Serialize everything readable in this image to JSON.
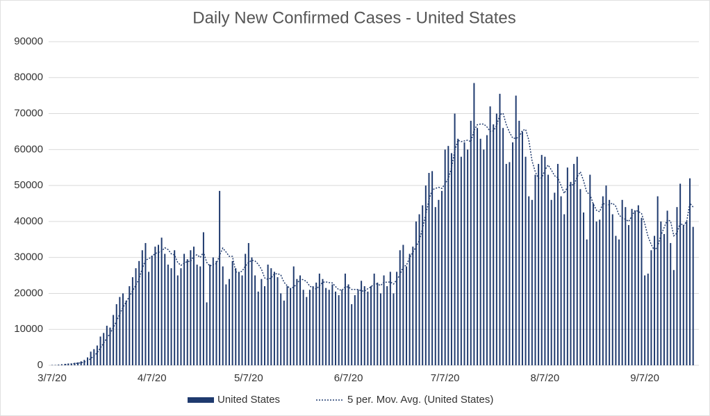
{
  "chart_data": {
    "type": "bar",
    "title": "Daily New Confirmed Cases - United States",
    "categories": [
      "3/7/20",
      null,
      null,
      null,
      null,
      null,
      null,
      null,
      null,
      null,
      null,
      null,
      null,
      null,
      null,
      null,
      null,
      null,
      null,
      null,
      null,
      null,
      null,
      null,
      null,
      null,
      null,
      null,
      null,
      null,
      null,
      "4/7/20",
      null,
      null,
      null,
      null,
      null,
      null,
      null,
      null,
      null,
      null,
      null,
      null,
      null,
      null,
      null,
      null,
      null,
      null,
      null,
      null,
      null,
      null,
      null,
      null,
      null,
      null,
      null,
      null,
      null,
      "5/7/20",
      null,
      null,
      null,
      null,
      null,
      null,
      null,
      null,
      null,
      null,
      null,
      null,
      null,
      null,
      null,
      null,
      null,
      null,
      null,
      null,
      null,
      null,
      null,
      null,
      null,
      null,
      null,
      null,
      null,
      null,
      "6/7/20",
      null,
      null,
      null,
      null,
      null,
      null,
      null,
      null,
      null,
      null,
      null,
      null,
      null,
      null,
      null,
      null,
      null,
      null,
      null,
      null,
      null,
      null,
      null,
      null,
      null,
      null,
      null,
      null,
      null,
      "7/7/20",
      null,
      null,
      null,
      null,
      null,
      null,
      null,
      null,
      null,
      null,
      null,
      null,
      null,
      null,
      null,
      null,
      null,
      null,
      null,
      null,
      null,
      null,
      null,
      null,
      null,
      null,
      null,
      null,
      null,
      null,
      "8/7/20",
      null,
      null,
      null,
      null,
      null,
      null,
      null,
      null,
      null,
      null,
      null,
      null,
      null,
      null,
      null,
      null,
      null,
      null,
      null,
      null,
      null,
      null,
      null,
      null,
      null,
      null,
      null,
      null,
      null,
      null,
      "9/7/20",
      null,
      null,
      null,
      null,
      null,
      null,
      null,
      null,
      null,
      null,
      null,
      null,
      null,
      null,
      null
    ],
    "series": [
      {
        "name": "United States",
        "color": "#1f3a6e",
        "values": [
          100,
          100,
          200,
          300,
          400,
          500,
          500,
          700,
          800,
          1100,
          1500,
          2200,
          3800,
          4500,
          5500,
          8000,
          9000,
          11000,
          10500,
          14000,
          17000,
          19000,
          20000,
          18000,
          22000,
          24500,
          27000,
          29000,
          32000,
          34000,
          26000,
          30500,
          33000,
          33500,
          35500,
          31000,
          28000,
          27000,
          32000,
          25000,
          27000,
          31000,
          29500,
          32000,
          33000,
          28000,
          27500,
          37000,
          17500,
          28000,
          30000,
          29000,
          48500,
          27500,
          22500,
          24000,
          29000,
          27000,
          26000,
          25000,
          31000,
          34000,
          30000,
          25000,
          20500,
          24000,
          22000,
          28000,
          27000,
          26000,
          24500,
          20000,
          18000,
          22000,
          21500,
          27500,
          24000,
          25000,
          21000,
          19000,
          21000,
          22000,
          23000,
          25500,
          24000,
          21500,
          21000,
          22500,
          20500,
          19500,
          21000,
          25500,
          22500,
          17000,
          19500,
          21000,
          23500,
          22000,
          20500,
          22000,
          25500,
          23000,
          20000,
          25000,
          22000,
          26000,
          20000,
          26000,
          32000,
          33500,
          27500,
          31000,
          33000,
          40000,
          42000,
          44500,
          50000,
          53500,
          54000,
          44000,
          46000,
          48500,
          60000,
          61000,
          59000,
          70000,
          63000,
          58000,
          62000,
          60000,
          68000,
          78500,
          66000,
          63000,
          60000,
          64000,
          72000,
          67000,
          70000,
          75500,
          66000,
          56000,
          56500,
          62000,
          75000,
          68000,
          65000,
          58000,
          47000,
          46000,
          53000,
          56000,
          58500,
          58000,
          53000,
          46000,
          48000,
          56000,
          47000,
          42000,
          55000,
          51000,
          56000,
          58000,
          49000,
          42500,
          35000,
          53000,
          45000,
          40000,
          40500,
          47000,
          50000,
          46000,
          42000,
          36000,
          35000,
          46000,
          44000,
          39000,
          43500,
          43000,
          44500,
          41000,
          25000,
          25500,
          32000,
          36000,
          47000,
          40000,
          36500,
          43000,
          34000,
          26500,
          44000,
          50500,
          39000,
          40000,
          52000,
          38500
        ]
      }
    ],
    "moving_average": {
      "name": "5 per. Mov. Avg. (United States)",
      "period": 5,
      "color": "#1f3a6e"
    },
    "ylim": [
      0,
      90000
    ],
    "yticks": [
      0,
      10000,
      20000,
      30000,
      40000,
      50000,
      60000,
      70000,
      80000,
      90000
    ],
    "grid": true
  }
}
